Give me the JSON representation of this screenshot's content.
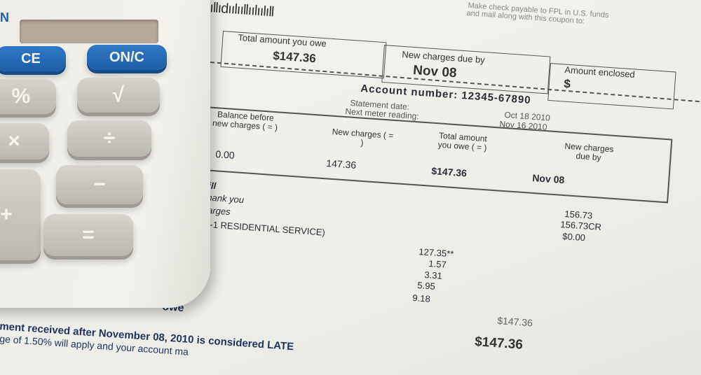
{
  "bill": {
    "barcode": "ıllıdıılııllıılıılıll",
    "instructions": [
      "Make check payable to FPL in U.S. funds",
      "and mail along with this coupon to:"
    ],
    "coupon": {
      "total_label": "Total amount you owe",
      "total_value": "$147.36",
      "due_label": "New charges due by",
      "due_value": "Nov 08",
      "enclosed_label": "Amount enclosed",
      "enclosed_value": "$"
    },
    "account_number": "Account number: 12345-67890",
    "statement_date_label": "Statement date:",
    "statement_date": "Oct 18 2010",
    "next_meter_label": "Next meter reading:",
    "next_meter": "Nov 16 2010",
    "summary": {
      "headers": [
        "Balance before new charges ( = )",
        "New charges ( = )",
        "Total amount you owe ( = )",
        "New charges due by"
      ],
      "values": [
        "0.00",
        "147.36",
        "$147.36",
        "Nov 08"
      ]
    },
    "lines": [
      {
        "label": "bill",
        "amount": ""
      },
      {
        "label": "Thank you",
        "amount": ""
      },
      {
        "label": "charges",
        "amount": "156.73"
      },
      {
        "label": "",
        "amount": "156.73CR"
      },
      {
        "label": "RS-1 RESIDENTIAL SERVICE)",
        "amount": "$0.00"
      }
    ],
    "items": [
      "127.35**",
      "1.57",
      "3.31",
      "5.95",
      "9.18"
    ],
    "subtotal": "$147.36",
    "owe_label": "owe",
    "grand_total": "$147.36",
    "notice": [
      "ment received after November 08, 2010 is considered LATE",
      "ge of 1.50% will apply and your account ma"
    ]
  },
  "calculator": {
    "brand_fragment": "N",
    "keys": [
      "CE",
      "ON/C",
      "%",
      "√",
      "×",
      "÷",
      "−",
      "=",
      "+"
    ]
  }
}
